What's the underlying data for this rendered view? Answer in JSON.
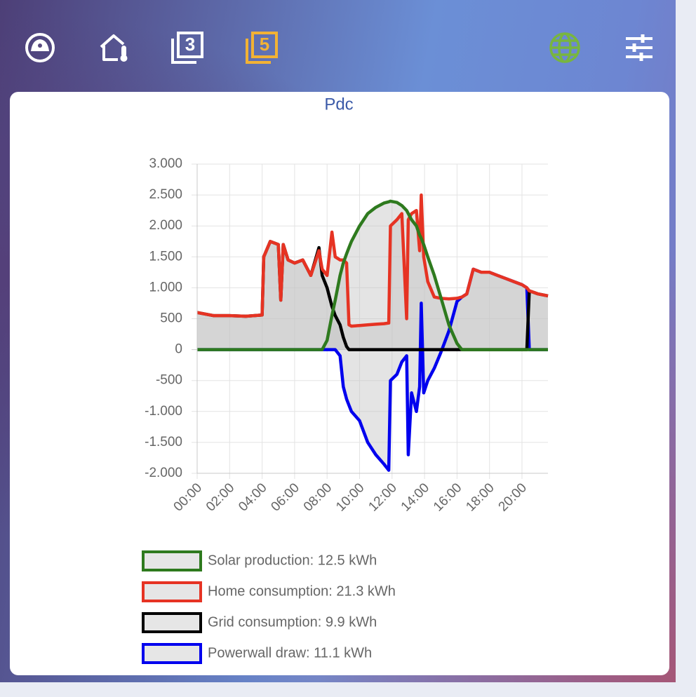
{
  "nav": [
    "3",
    "5"
  ],
  "chart_data": {
    "type": "line",
    "title": "Pdc",
    "x": [
      0,
      1,
      2,
      3,
      4,
      4.1,
      4.5,
      5,
      5.15,
      5.3,
      5.6,
      6,
      6.5,
      7,
      7.5,
      7.7,
      8,
      8.3,
      8.5,
      8.8,
      9,
      9.2,
      9.35,
      9.5,
      10,
      10.5,
      11,
      11.5,
      11.8,
      11.9,
      12.3,
      12.6,
      12.9,
      13,
      13.2,
      13.5,
      13.7,
      13.8,
      13.95,
      14.2,
      14.6,
      15,
      15.5,
      16,
      16.3,
      16.6,
      17,
      17.5,
      18,
      18.5,
      19,
      19.5,
      20,
      20.3,
      20.45,
      21,
      21.6
    ],
    "series": [
      {
        "name": "Solar production: 12.5 kWh",
        "color": "#2e7a1e",
        "values": [
          0,
          0,
          0,
          0,
          0,
          0,
          0,
          0,
          0,
          0,
          0,
          0,
          0,
          0,
          0,
          0,
          150,
          550,
          800,
          1200,
          1400,
          1550,
          1650,
          1750,
          2000,
          2200,
          2300,
          2370,
          2390,
          2400,
          2380,
          2330,
          2250,
          2200,
          2100,
          2000,
          1850,
          1800,
          1700,
          1500,
          1200,
          850,
          400,
          100,
          0,
          0,
          0,
          0,
          0,
          0,
          0,
          0,
          0,
          0,
          0,
          0,
          0
        ]
      },
      {
        "name": "Home consumption: 21.3 kWh",
        "color": "#e63323",
        "values": [
          600,
          550,
          550,
          540,
          560,
          1500,
          1750,
          1700,
          800,
          1700,
          1450,
          1400,
          1450,
          1200,
          1600,
          1300,
          1200,
          1900,
          1500,
          1450,
          1450,
          1400,
          400,
          380,
          390,
          400,
          410,
          420,
          430,
          2000,
          2100,
          2200,
          500,
          2100,
          2200,
          2250,
          1600,
          2500,
          1500,
          1100,
          850,
          830,
          820,
          830,
          850,
          900,
          1300,
          1250,
          1250,
          1200,
          1150,
          1100,
          1050,
          1000,
          950,
          900,
          870
        ]
      },
      {
        "name": "Grid consumption: 9.9 kWh",
        "color": "#000000",
        "values": [
          600,
          550,
          550,
          540,
          560,
          1500,
          1750,
          1700,
          800,
          1700,
          1450,
          1400,
          1450,
          1200,
          1650,
          1200,
          1000,
          700,
          550,
          400,
          200,
          50,
          0,
          0,
          0,
          0,
          0,
          0,
          0,
          0,
          0,
          0,
          0,
          0,
          0,
          0,
          0,
          0,
          0,
          0,
          0,
          0,
          0,
          0,
          0,
          0,
          0,
          0,
          0,
          0,
          0,
          0,
          0,
          0,
          950,
          900,
          870
        ]
      },
      {
        "name": "Powerwall draw: 11.1 kWh",
        "color": "#0000ee",
        "values": [
          0,
          0,
          0,
          0,
          0,
          0,
          0,
          0,
          0,
          0,
          0,
          0,
          0,
          0,
          0,
          0,
          0,
          0,
          0,
          -100,
          -600,
          -800,
          -900,
          -1000,
          -1150,
          -1500,
          -1700,
          -1850,
          -1950,
          -500,
          -400,
          -200,
          -100,
          -1700,
          -700,
          -1000,
          -600,
          750,
          -700,
          -500,
          -300,
          -50,
          300,
          780,
          850,
          900,
          1300,
          1250,
          1250,
          1200,
          1150,
          1100,
          1050,
          1000,
          0,
          0,
          0
        ]
      }
    ],
    "fill": "rgba(195,195,195,0.45)",
    "xlim": [
      0,
      21.6
    ],
    "xticks": [
      {
        "value": 0,
        "label": "00:00"
      },
      {
        "value": 2,
        "label": "02:00"
      },
      {
        "value": 4,
        "label": "04:00"
      },
      {
        "value": 6,
        "label": "06:00"
      },
      {
        "value": 8,
        "label": "08:00"
      },
      {
        "value": 10,
        "label": "10:00"
      },
      {
        "value": 12,
        "label": "12:00"
      },
      {
        "value": 14,
        "label": "14:00"
      },
      {
        "value": 16,
        "label": "16:00"
      },
      {
        "value": 18,
        "label": "18:00"
      },
      {
        "value": 20,
        "label": "20:00"
      }
    ],
    "ylim": [
      -2000,
      3000
    ],
    "yticks": [
      {
        "value": -2000,
        "label": "-2.000"
      },
      {
        "value": -1500,
        "label": "-1.500"
      },
      {
        "value": -1000,
        "label": "-1.000"
      },
      -500,
      0,
      500,
      {
        "value": 1000,
        "label": "1.000"
      },
      {
        "value": 1500,
        "label": "1.500"
      },
      {
        "value": 2000,
        "label": "2.000"
      },
      {
        "value": 2500,
        "label": "2.500"
      },
      {
        "value": 3000,
        "label": "3.000"
      }
    ],
    "grid": true,
    "legend": "bottom"
  }
}
